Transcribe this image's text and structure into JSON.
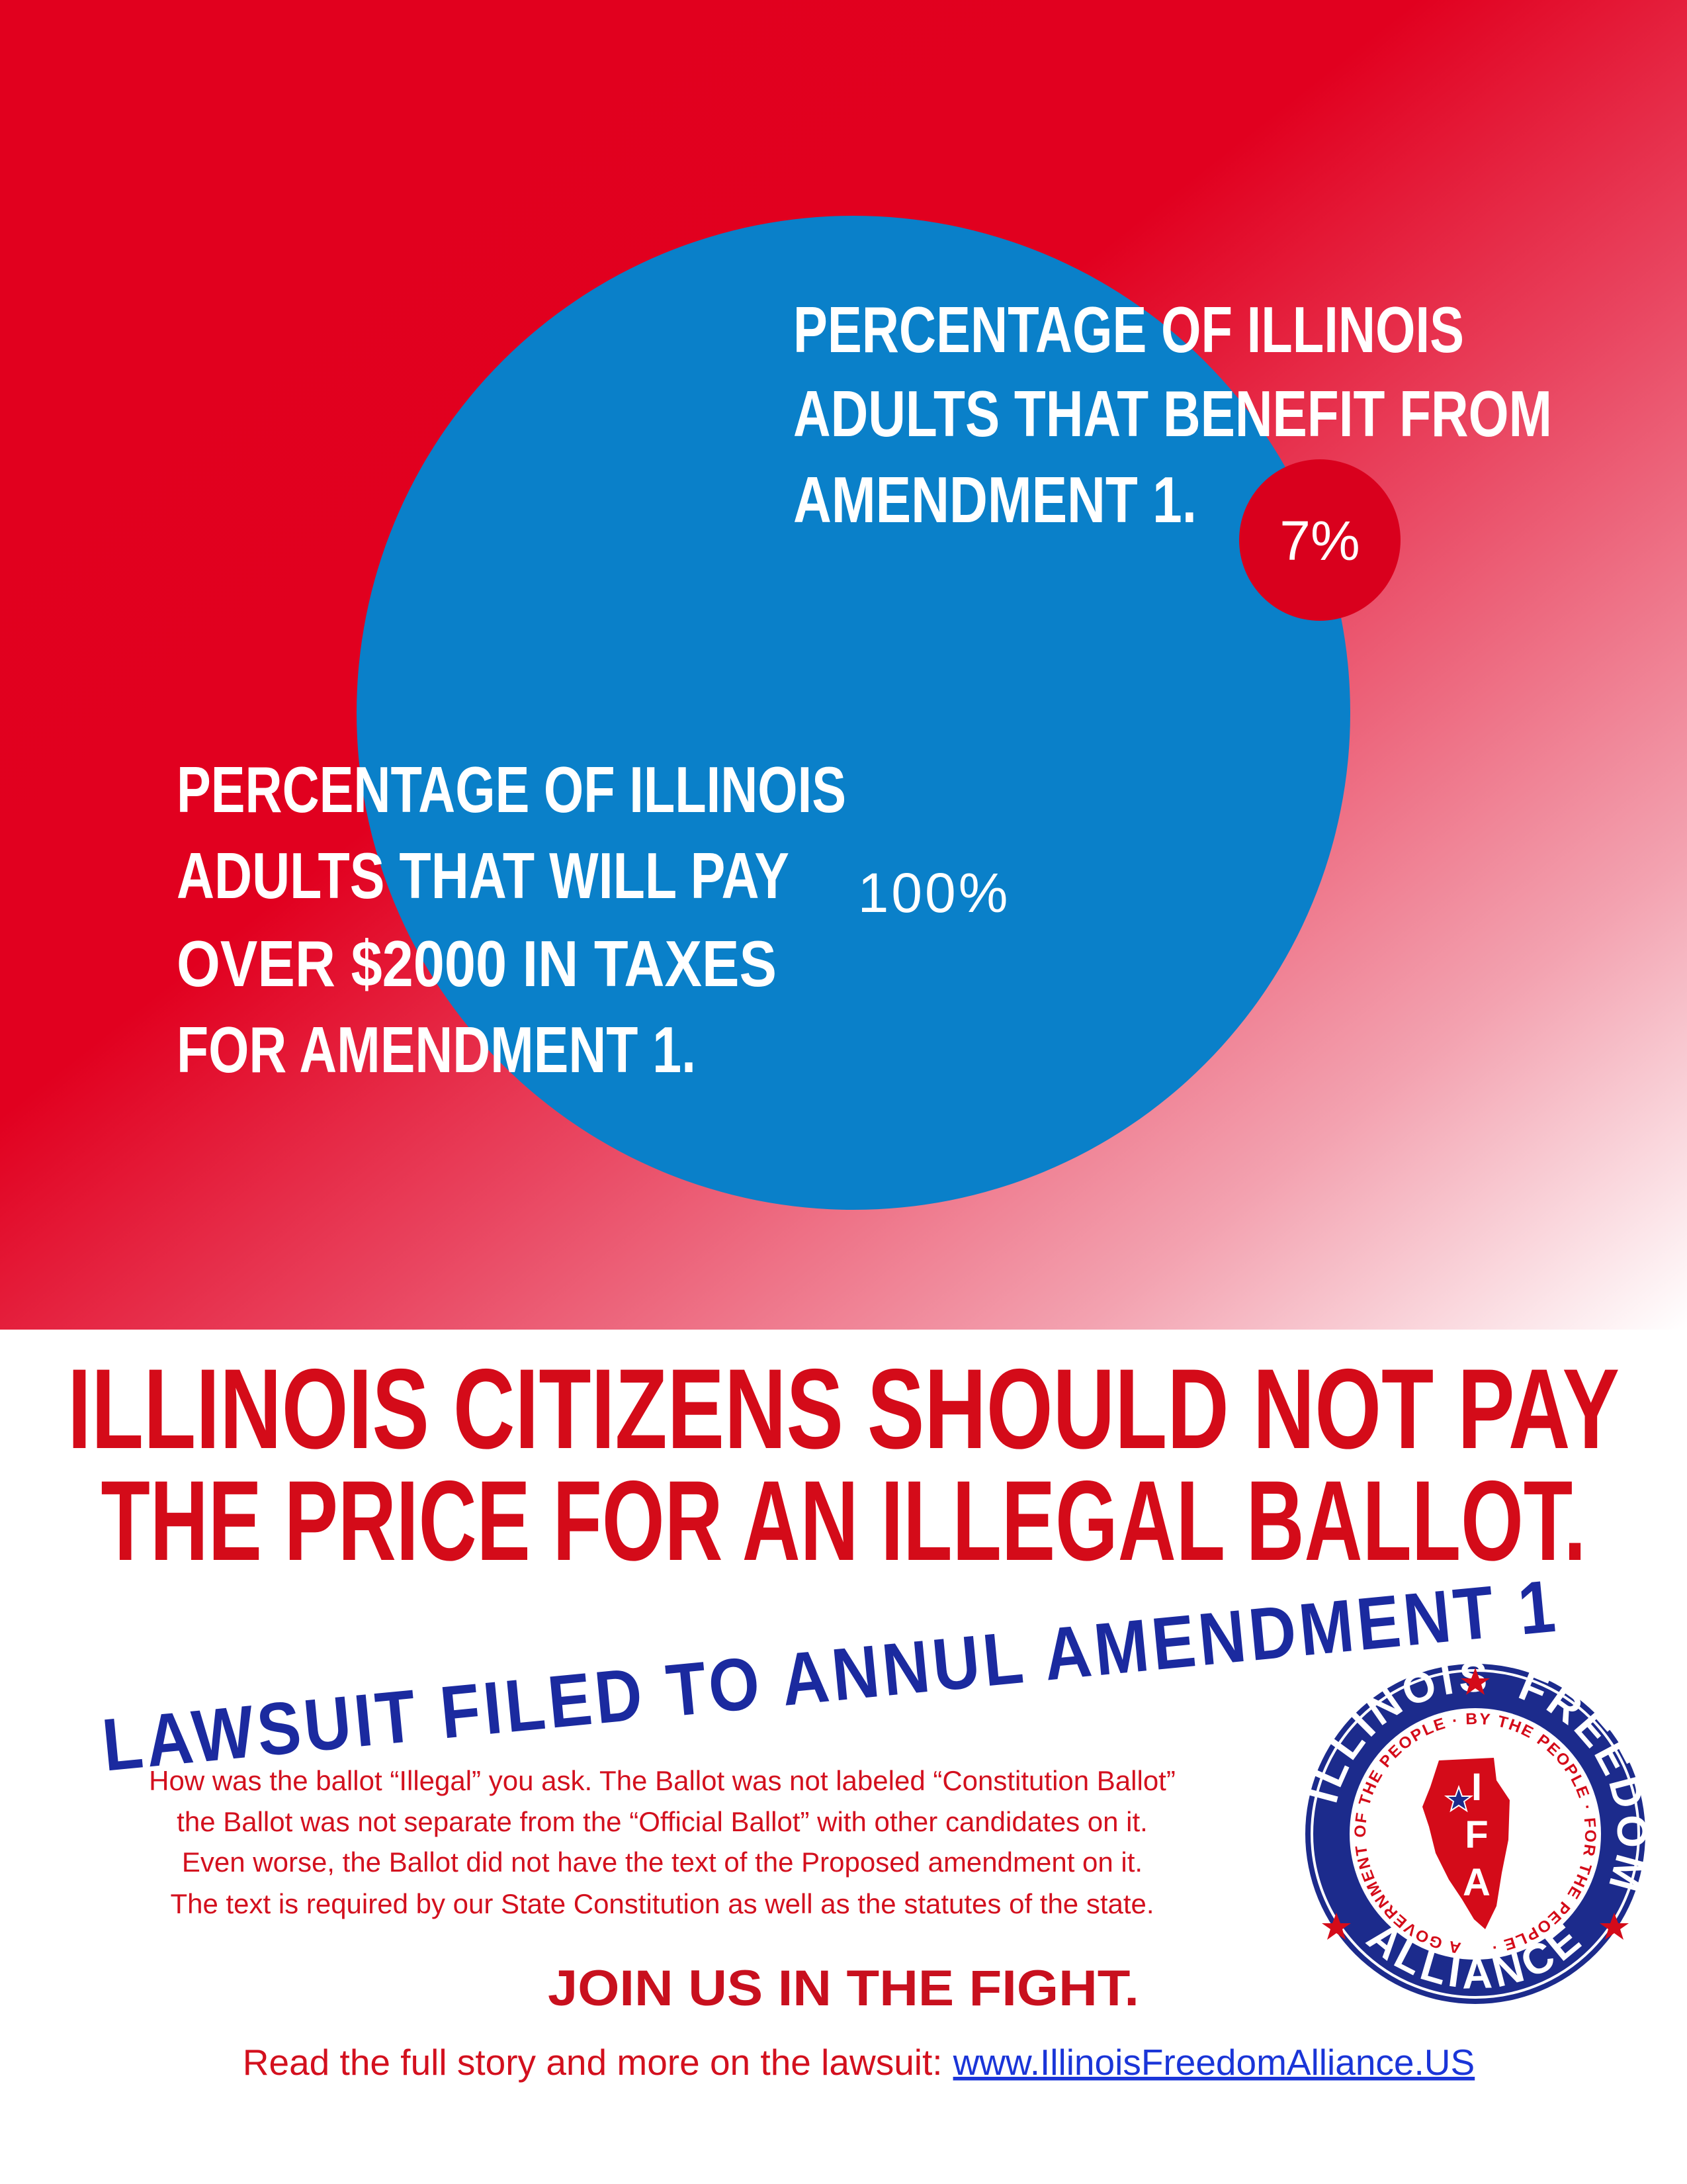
{
  "top_panel": {
    "benefit_label": [
      "PERCENTAGE OF ILLINOIS",
      "ADULTS THAT BENEFIT FROM",
      "AMENDMENT 1."
    ],
    "benefit_value": "7%",
    "pay_label": [
      "PERCENTAGE OF ILLINOIS",
      "ADULTS THAT WILL PAY",
      "OVER $2000 IN TAXES",
      "FOR AMENDMENT 1."
    ],
    "pay_value": "100%"
  },
  "headline": [
    "ILLINOIS CITIZENS SHOULD NOT PAY",
    "THE PRICE FOR AN ILLEGAL BALLOT."
  ],
  "subheadline": "LAWSUIT FILED TO ANNUL AMENDMENT 1",
  "body": [
    "How was the ballot “Illegal” you ask. The Ballot was not labeled “Constitution Ballot”",
    "the Ballot was not separate from the “Official Ballot” with other candidates on it.",
    "Even worse, the Ballot did not have the text of the Proposed amendment on it.",
    "The text is required by our State Constitution as well as the statutes of the state."
  ],
  "logo": {
    "top_left": "ILLINOIS",
    "top_right": "FREEDOM",
    "bottom": "ALLIANCE",
    "ring": "A GOVERNMENT OF THE PEOPLE · BY THE PEOPLE · FOR THE PEOPLE ·",
    "letters": [
      "I",
      "F",
      "A"
    ]
  },
  "call_to_action": "JOIN US IN THE FIGHT.",
  "footer": {
    "text": "Read the full story and more on the lawsuit:",
    "link": "www.IllinoisFreedomAlliance.US"
  }
}
